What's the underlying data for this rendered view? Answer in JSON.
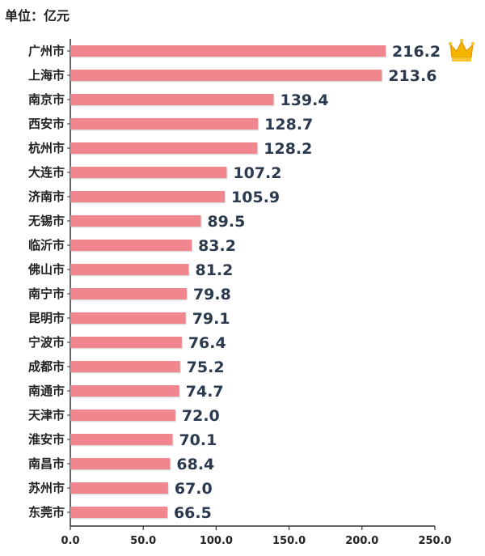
{
  "unit_label": "单位：亿元",
  "chart_data": {
    "type": "bar",
    "orientation": "horizontal",
    "categories": [
      "广州市",
      "上海市",
      "南京市",
      "西安市",
      "杭州市",
      "大连市",
      "济南市",
      "无锡市",
      "临沂市",
      "佛山市",
      "南宁市",
      "昆明市",
      "宁波市",
      "成都市",
      "南通市",
      "天津市",
      "淮安市",
      "南昌市",
      "苏州市",
      "东莞市"
    ],
    "values": [
      216.2,
      213.6,
      139.4,
      128.7,
      128.2,
      107.2,
      105.9,
      89.5,
      83.2,
      81.2,
      79.8,
      79.1,
      76.4,
      75.2,
      74.7,
      72.0,
      70.1,
      68.4,
      67.0,
      66.5
    ],
    "value_labels": [
      "216.2",
      "213.6",
      "139.4",
      "128.7",
      "128.2",
      "107.2",
      "105.9",
      "89.5",
      "83.2",
      "81.2",
      "79.8",
      "79.1",
      "76.4",
      "75.2",
      "74.7",
      "72.0",
      "70.1",
      "68.4",
      "67.0",
      "66.5"
    ],
    "xticks": [
      "0.0",
      "50.0",
      "100.0",
      "150.0",
      "200.0",
      "250.0"
    ],
    "xlim": [
      0,
      250
    ],
    "bar_color": "#f0868e",
    "grid": false,
    "top_marker_icon": "crown-icon",
    "crown_color": "#f5b400"
  }
}
